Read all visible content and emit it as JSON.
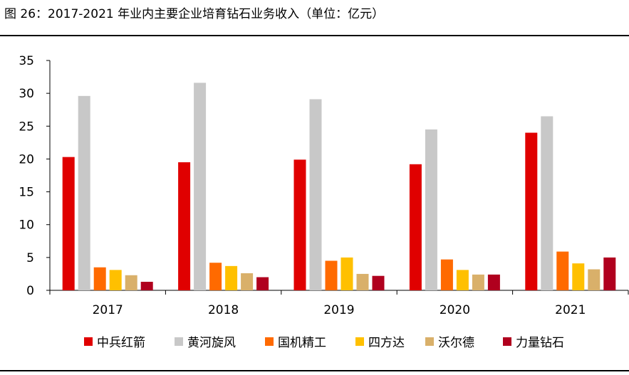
{
  "title": "图 26：2017-2021 年业内主要企业培育钻石业务收入（单位：亿元）",
  "chart_data": {
    "type": "bar",
    "title": "图 26：2017-2021 年业内主要企业培育钻石业务收入（单位：亿元）",
    "categories": [
      "2017",
      "2018",
      "2019",
      "2020",
      "2021"
    ],
    "ylim": [
      0,
      35
    ],
    "yticks": [
      0,
      5,
      10,
      15,
      20,
      25,
      30,
      35
    ],
    "grid": false,
    "legend_position": "bottom",
    "series": [
      {
        "name": "中兵红箭",
        "color": "#E00000",
        "values": [
          20.3,
          19.5,
          19.9,
          19.2,
          24.0
        ]
      },
      {
        "name": "黄河旋风",
        "color": "#C8C8C8",
        "values": [
          29.6,
          31.6,
          29.1,
          24.5,
          26.5
        ]
      },
      {
        "name": "国机精工",
        "color": "#FF6A00",
        "values": [
          3.5,
          4.2,
          4.5,
          4.7,
          5.9
        ]
      },
      {
        "name": "四方达",
        "color": "#FFC000",
        "values": [
          3.1,
          3.7,
          5.0,
          3.1,
          4.1
        ]
      },
      {
        "name": "沃尔德",
        "color": "#D9B06A",
        "values": [
          2.3,
          2.6,
          2.5,
          2.4,
          3.2
        ]
      },
      {
        "name": "力量钻石",
        "color": "#B0001E",
        "values": [
          1.3,
          2.0,
          2.2,
          2.4,
          5.0
        ]
      }
    ]
  }
}
